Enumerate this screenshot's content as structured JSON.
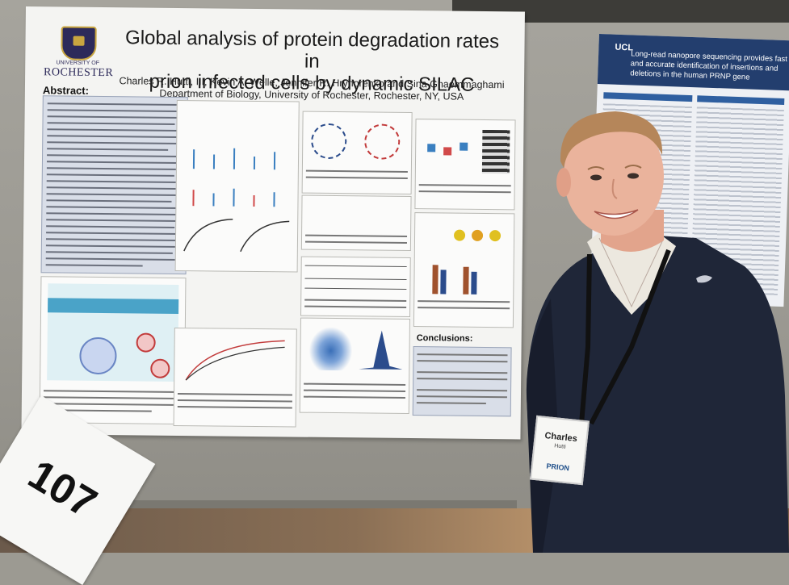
{
  "poster": {
    "title_line1": "Global analysis of protein degradation rates in",
    "title_line2": "prion infected cells by dynamic SILAC",
    "authors": "Charles R. Hutti, III, Kevin A. Welle, Jennifer R. Hryhorenko and Sina Ghaemmaghami",
    "department": "Department of Biology, University of Rochester, Rochester, NY, USA",
    "university_top": "UNIVERSITY OF",
    "university": "ROCHESTER",
    "abstract_heading": "Abstract:",
    "conclusions_heading": "Conclusions:"
  },
  "booth_sign": {
    "number": "107"
  },
  "right_poster": {
    "logo": "UCL",
    "title": "Long-read nanopore sequencing provides fast and accurate identification of insertions and deletions in the human PRNP gene"
  },
  "name_badge": {
    "name": "Charles",
    "last": "Hutti",
    "logo": "PRION"
  },
  "colors": {
    "poster_bg": "#f4f4f2",
    "abstract_bg": "#d9dee8",
    "ucl_blue": "#233e6e",
    "sweater": "#1f2638"
  }
}
